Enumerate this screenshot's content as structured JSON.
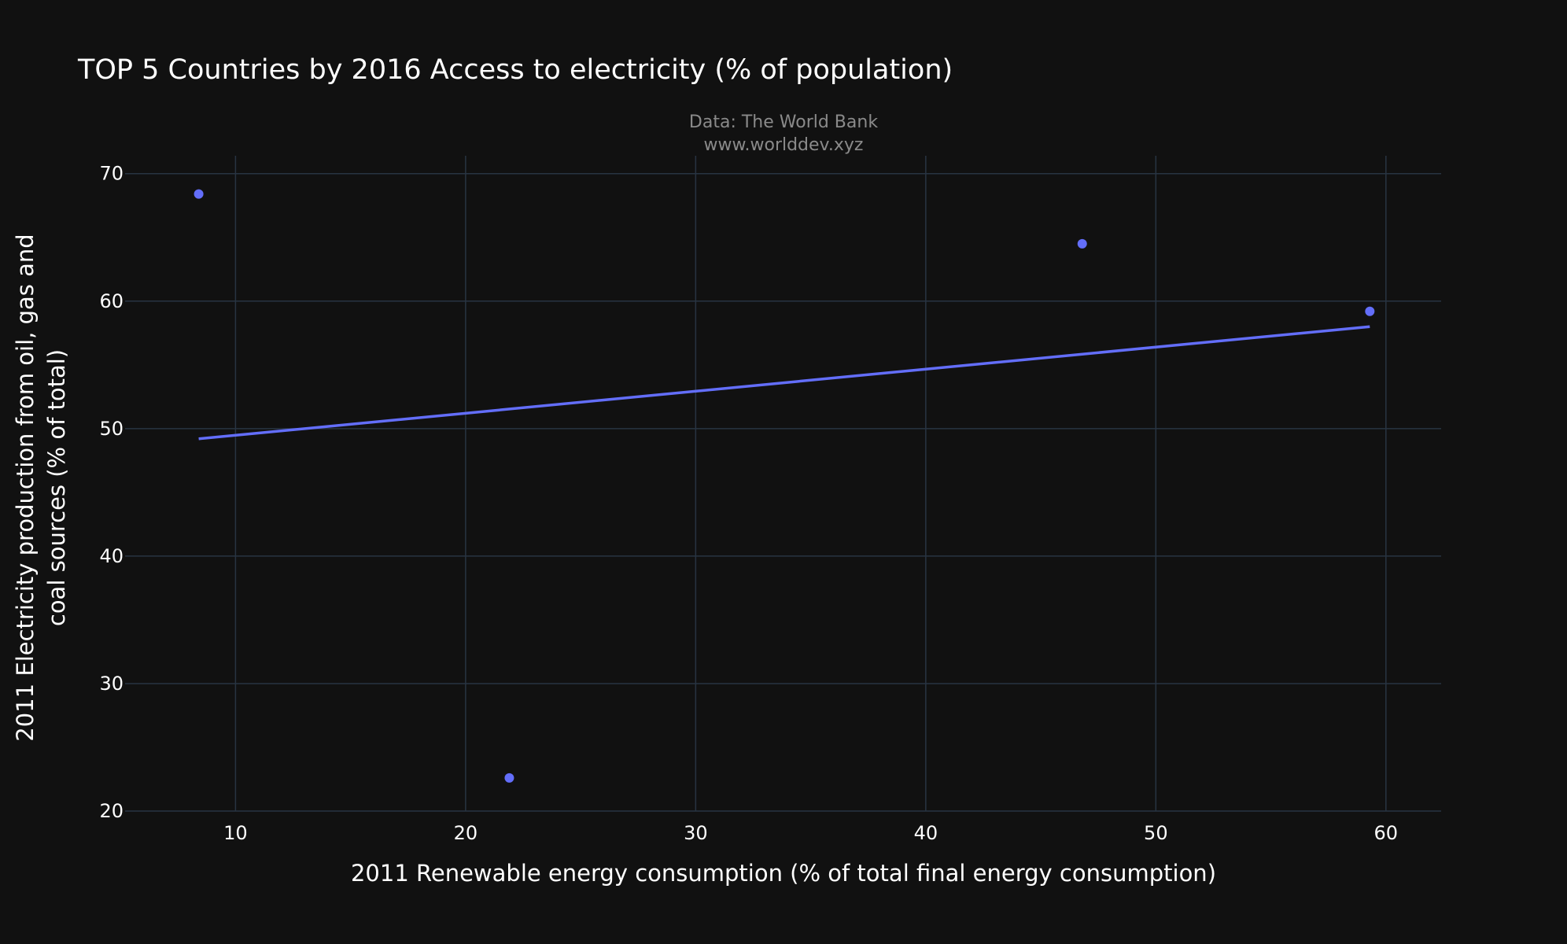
{
  "chart_data": {
    "type": "scatter",
    "title": "TOP 5 Countries by 2016 Access to electricity (% of population)",
    "subtitle_lines": [
      "Data: The World Bank",
      "www.worlddev.xyz"
    ],
    "xlabel": "2011 Renewable energy consumption (% of total final energy consumption)",
    "ylabel_lines": [
      "2011 Electricity production from oil, gas and",
      "coal sources (% of total)"
    ],
    "xlim": [
      5.2,
      62.4
    ],
    "ylim": [
      20,
      71.4
    ],
    "x_ticks": [
      10,
      20,
      30,
      40,
      50,
      60
    ],
    "y_ticks": [
      20,
      30,
      40,
      50,
      60,
      70
    ],
    "grid": true,
    "series": [
      {
        "mode": "markers",
        "color": "#636efa",
        "points": [
          {
            "x": 8.4,
            "y": 68.4
          },
          {
            "x": 21.9,
            "y": 22.6
          },
          {
            "x": 46.8,
            "y": 64.5
          },
          {
            "x": 59.3,
            "y": 59.2
          }
        ]
      },
      {
        "mode": "lines",
        "color": "#636efa",
        "points": [
          {
            "x": 8.4,
            "y": 49.2
          },
          {
            "x": 59.3,
            "y": 58.0
          }
        ]
      }
    ]
  }
}
